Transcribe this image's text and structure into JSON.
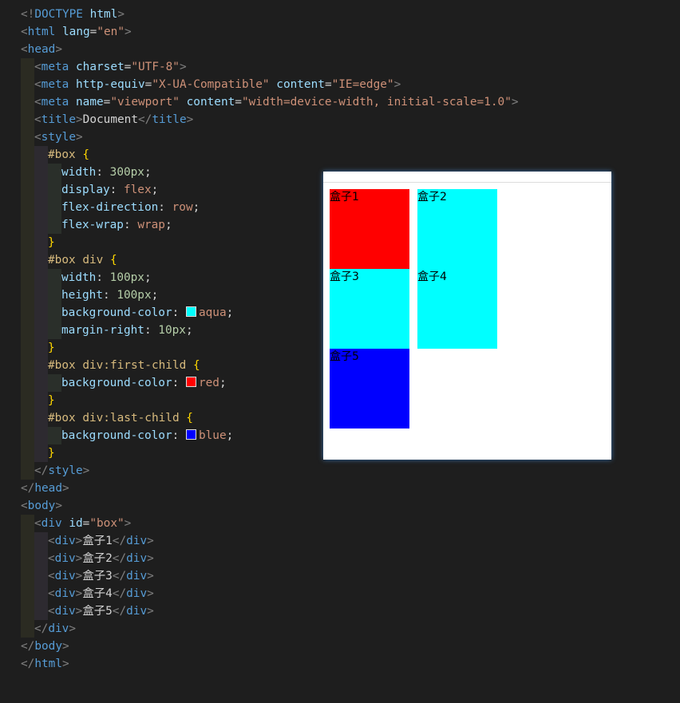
{
  "colors": {
    "box_default": "#00ffff",
    "box_first": "#ff0000",
    "box_last": "#0000ff"
  },
  "code": [
    {
      "indent": 0,
      "tokens": [
        [
          "t",
          "<!"
        ],
        [
          "n",
          "DOCTYPE"
        ],
        [
          "x",
          " "
        ],
        [
          "a",
          "html"
        ],
        [
          "t",
          ">"
        ]
      ]
    },
    {
      "indent": 0,
      "tokens": [
        [
          "t",
          "<"
        ],
        [
          "n",
          "html"
        ],
        [
          "x",
          " "
        ],
        [
          "a",
          "lang"
        ],
        [
          "x",
          "="
        ],
        [
          "s",
          "\"en\""
        ],
        [
          "t",
          ">"
        ]
      ]
    },
    {
      "indent": 0,
      "tokens": [
        [
          "t",
          "<"
        ],
        [
          "n",
          "head"
        ],
        [
          "t",
          ">"
        ]
      ]
    },
    {
      "indent": 1,
      "tokens": [
        [
          "t",
          "<"
        ],
        [
          "n",
          "meta"
        ],
        [
          "x",
          " "
        ],
        [
          "a",
          "charset"
        ],
        [
          "x",
          "="
        ],
        [
          "s",
          "\"UTF-8\""
        ],
        [
          "t",
          ">"
        ]
      ]
    },
    {
      "indent": 1,
      "tokens": [
        [
          "t",
          "<"
        ],
        [
          "n",
          "meta"
        ],
        [
          "x",
          " "
        ],
        [
          "a",
          "http-equiv"
        ],
        [
          "x",
          "="
        ],
        [
          "s",
          "\"X-UA-Compatible\""
        ],
        [
          "x",
          " "
        ],
        [
          "a",
          "content"
        ],
        [
          "x",
          "="
        ],
        [
          "s",
          "\"IE=edge\""
        ],
        [
          "t",
          ">"
        ]
      ]
    },
    {
      "indent": 1,
      "tokens": [
        [
          "t",
          "<"
        ],
        [
          "n",
          "meta"
        ],
        [
          "x",
          " "
        ],
        [
          "a",
          "name"
        ],
        [
          "x",
          "="
        ],
        [
          "s",
          "\"viewport\""
        ],
        [
          "x",
          " "
        ],
        [
          "a",
          "content"
        ],
        [
          "x",
          "="
        ],
        [
          "s",
          "\"width=device-width, initial-scale=1.0\""
        ],
        [
          "t",
          ">"
        ]
      ]
    },
    {
      "indent": 1,
      "tokens": [
        [
          "t",
          "<"
        ],
        [
          "n",
          "title"
        ],
        [
          "t",
          ">"
        ],
        [
          "x",
          "Document"
        ],
        [
          "t",
          "</"
        ],
        [
          "n",
          "title"
        ],
        [
          "t",
          ">"
        ]
      ]
    },
    {
      "indent": 1,
      "tokens": [
        [
          "t",
          "<"
        ],
        [
          "n",
          "style"
        ],
        [
          "t",
          ">"
        ]
      ]
    },
    {
      "indent": 2,
      "tokens": [
        [
          "sel",
          "#box"
        ],
        [
          "x",
          " "
        ],
        [
          "b",
          "{"
        ]
      ]
    },
    {
      "indent": 3,
      "tokens": [
        [
          "p",
          "width"
        ],
        [
          "x",
          ": "
        ],
        [
          "num",
          "300px"
        ],
        [
          "x",
          ";"
        ]
      ]
    },
    {
      "indent": 3,
      "tokens": [
        [
          "p",
          "display"
        ],
        [
          "x",
          ": "
        ],
        [
          "v",
          "flex"
        ],
        [
          "x",
          ";"
        ]
      ]
    },
    {
      "indent": 3,
      "tokens": [
        [
          "p",
          "flex-direction"
        ],
        [
          "x",
          ": "
        ],
        [
          "v",
          "row"
        ],
        [
          "x",
          ";"
        ]
      ]
    },
    {
      "indent": 3,
      "tokens": [
        [
          "p",
          "flex-wrap"
        ],
        [
          "x",
          ": "
        ],
        [
          "v",
          "wrap"
        ],
        [
          "x",
          ";"
        ]
      ]
    },
    {
      "indent": 2,
      "tokens": [
        [
          "b",
          "}"
        ]
      ]
    },
    {
      "indent": 2,
      "tokens": [
        [
          "sel",
          "#box div"
        ],
        [
          "x",
          " "
        ],
        [
          "b",
          "{"
        ]
      ]
    },
    {
      "indent": 3,
      "tokens": [
        [
          "p",
          "width"
        ],
        [
          "x",
          ": "
        ],
        [
          "num",
          "100px"
        ],
        [
          "x",
          ";"
        ]
      ]
    },
    {
      "indent": 3,
      "tokens": [
        [
          "p",
          "height"
        ],
        [
          "x",
          ": "
        ],
        [
          "num",
          "100px"
        ],
        [
          "x",
          ";"
        ]
      ]
    },
    {
      "indent": 3,
      "tokens": [
        [
          "p",
          "background-color"
        ],
        [
          "x",
          ": "
        ],
        [
          "sw",
          "#00ffff"
        ],
        [
          "v",
          "aqua"
        ],
        [
          "x",
          ";"
        ]
      ]
    },
    {
      "indent": 3,
      "tokens": [
        [
          "p",
          "margin-right"
        ],
        [
          "x",
          ": "
        ],
        [
          "num",
          "10px"
        ],
        [
          "x",
          ";"
        ]
      ]
    },
    {
      "indent": 2,
      "tokens": [
        [
          "b",
          "}"
        ]
      ]
    },
    {
      "indent": 2,
      "tokens": [
        [
          "sel",
          "#box div:first-child"
        ],
        [
          "x",
          " "
        ],
        [
          "b",
          "{"
        ]
      ]
    },
    {
      "indent": 3,
      "tokens": [
        [
          "p",
          "background-color"
        ],
        [
          "x",
          ": "
        ],
        [
          "sw",
          "#ff0000"
        ],
        [
          "v",
          "red"
        ],
        [
          "x",
          ";"
        ]
      ]
    },
    {
      "indent": 2,
      "tokens": [
        [
          "b",
          "}"
        ]
      ]
    },
    {
      "indent": 2,
      "tokens": [
        [
          "sel",
          "#box div:last-child"
        ],
        [
          "x",
          " "
        ],
        [
          "b",
          "{"
        ]
      ]
    },
    {
      "indent": 3,
      "tokens": [
        [
          "p",
          "background-color"
        ],
        [
          "x",
          ": "
        ],
        [
          "sw",
          "#0000ff"
        ],
        [
          "v",
          "blue"
        ],
        [
          "x",
          ";"
        ]
      ]
    },
    {
      "indent": 2,
      "tokens": [
        [
          "b",
          "}"
        ]
      ]
    },
    {
      "indent": 1,
      "tokens": [
        [
          "t",
          "</"
        ],
        [
          "n",
          "style"
        ],
        [
          "t",
          ">"
        ]
      ]
    },
    {
      "indent": 0,
      "tokens": [
        [
          "t",
          "</"
        ],
        [
          "n",
          "head"
        ],
        [
          "t",
          ">"
        ]
      ]
    },
    {
      "indent": 0,
      "tokens": [
        [
          "t",
          "<"
        ],
        [
          "n",
          "body"
        ],
        [
          "t",
          ">"
        ]
      ]
    },
    {
      "indent": 1,
      "tokens": [
        [
          "t",
          "<"
        ],
        [
          "n",
          "div"
        ],
        [
          "x",
          " "
        ],
        [
          "a",
          "id"
        ],
        [
          "x",
          "="
        ],
        [
          "s",
          "\"box\""
        ],
        [
          "t",
          ">"
        ]
      ]
    },
    {
      "indent": 2,
      "tokens": [
        [
          "t",
          "<"
        ],
        [
          "n",
          "div"
        ],
        [
          "t",
          ">"
        ],
        [
          "x",
          "盒子1"
        ],
        [
          "t",
          "</"
        ],
        [
          "n",
          "div"
        ],
        [
          "t",
          ">"
        ]
      ]
    },
    {
      "indent": 2,
      "tokens": [
        [
          "t",
          "<"
        ],
        [
          "n",
          "div"
        ],
        [
          "t",
          ">"
        ],
        [
          "x",
          "盒子2"
        ],
        [
          "t",
          "</"
        ],
        [
          "n",
          "div"
        ],
        [
          "t",
          ">"
        ]
      ]
    },
    {
      "indent": 2,
      "tokens": [
        [
          "t",
          "<"
        ],
        [
          "n",
          "div"
        ],
        [
          "t",
          ">"
        ],
        [
          "x",
          "盒子3"
        ],
        [
          "t",
          "</"
        ],
        [
          "n",
          "div"
        ],
        [
          "t",
          ">"
        ]
      ]
    },
    {
      "indent": 2,
      "tokens": [
        [
          "t",
          "<"
        ],
        [
          "n",
          "div"
        ],
        [
          "t",
          ">"
        ],
        [
          "x",
          "盒子4"
        ],
        [
          "t",
          "</"
        ],
        [
          "n",
          "div"
        ],
        [
          "t",
          ">"
        ]
      ]
    },
    {
      "indent": 2,
      "tokens": [
        [
          "t",
          "<"
        ],
        [
          "n",
          "div"
        ],
        [
          "t",
          ">"
        ],
        [
          "x",
          "盒子5"
        ],
        [
          "t",
          "</"
        ],
        [
          "n",
          "div"
        ],
        [
          "t",
          ">"
        ]
      ]
    },
    {
      "indent": 1,
      "tokens": [
        [
          "t",
          "</"
        ],
        [
          "n",
          "div"
        ],
        [
          "t",
          ">"
        ]
      ]
    },
    {
      "indent": 0,
      "tokens": [
        [
          "t",
          "</"
        ],
        [
          "n",
          "body"
        ],
        [
          "t",
          ">"
        ]
      ]
    },
    {
      "indent": 0,
      "tokens": [
        [
          "t",
          "</"
        ],
        [
          "n",
          "html"
        ],
        [
          "t",
          ">"
        ]
      ]
    }
  ],
  "preview": {
    "boxes": [
      "盒子1",
      "盒子2",
      "盒子3",
      "盒子4",
      "盒子5"
    ]
  }
}
